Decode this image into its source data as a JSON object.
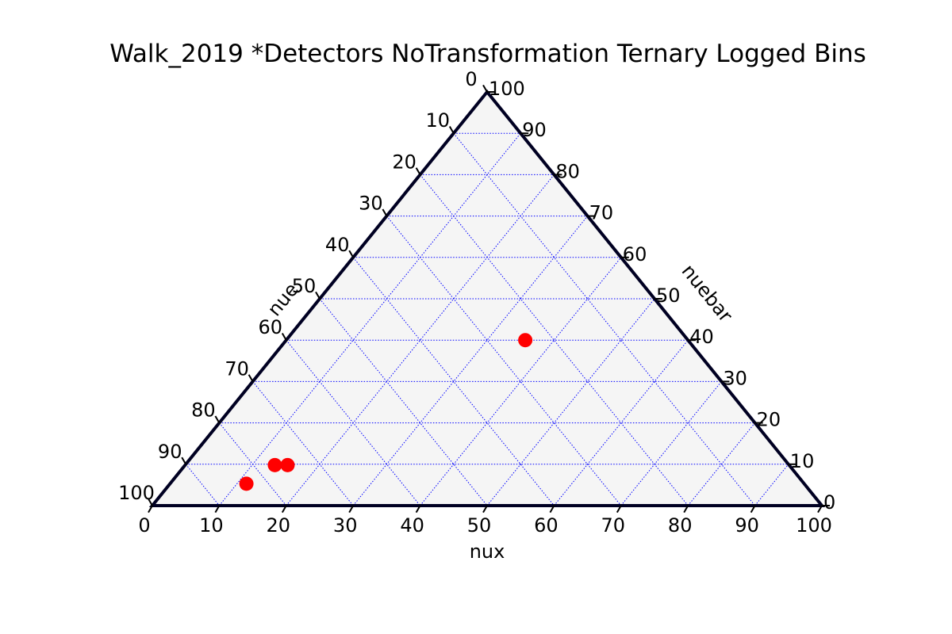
{
  "chart_data": {
    "type": "scatter",
    "subtype": "ternary",
    "title": "Walk_2019 *Detectors NoTransformation Ternary Logged Bins",
    "axes": {
      "bottom": {
        "label": "nux",
        "ticks": [
          "0",
          "10",
          "20",
          "30",
          "40",
          "50",
          "60",
          "70",
          "80",
          "90",
          "100"
        ]
      },
      "left": {
        "label": "nue",
        "ticks": [
          "0",
          "10",
          "20",
          "30",
          "40",
          "50",
          "60",
          "70",
          "80",
          "90",
          "100"
        ]
      },
      "right": {
        "label": "nuebar",
        "ticks": [
          "0",
          "10",
          "20",
          "30",
          "40",
          "50",
          "60",
          "70",
          "80",
          "90",
          "100"
        ]
      }
    },
    "scale": 100,
    "grid": true,
    "grid_multiple": 10,
    "colors": {
      "background": "#f5f5f5",
      "boundary": "#000022",
      "grid": "#0000ff",
      "points": "#ff0000"
    },
    "points": [
      {
        "nux": 35.7,
        "nuebar": 40.0,
        "nue": 24.3
      },
      {
        "nux": 13.4,
        "nuebar": 9.8,
        "nue": 76.8
      },
      {
        "nux": 15.3,
        "nuebar": 9.8,
        "nue": 74.9
      },
      {
        "nux": 11.4,
        "nuebar": 5.3,
        "nue": 83.3
      }
    ]
  }
}
